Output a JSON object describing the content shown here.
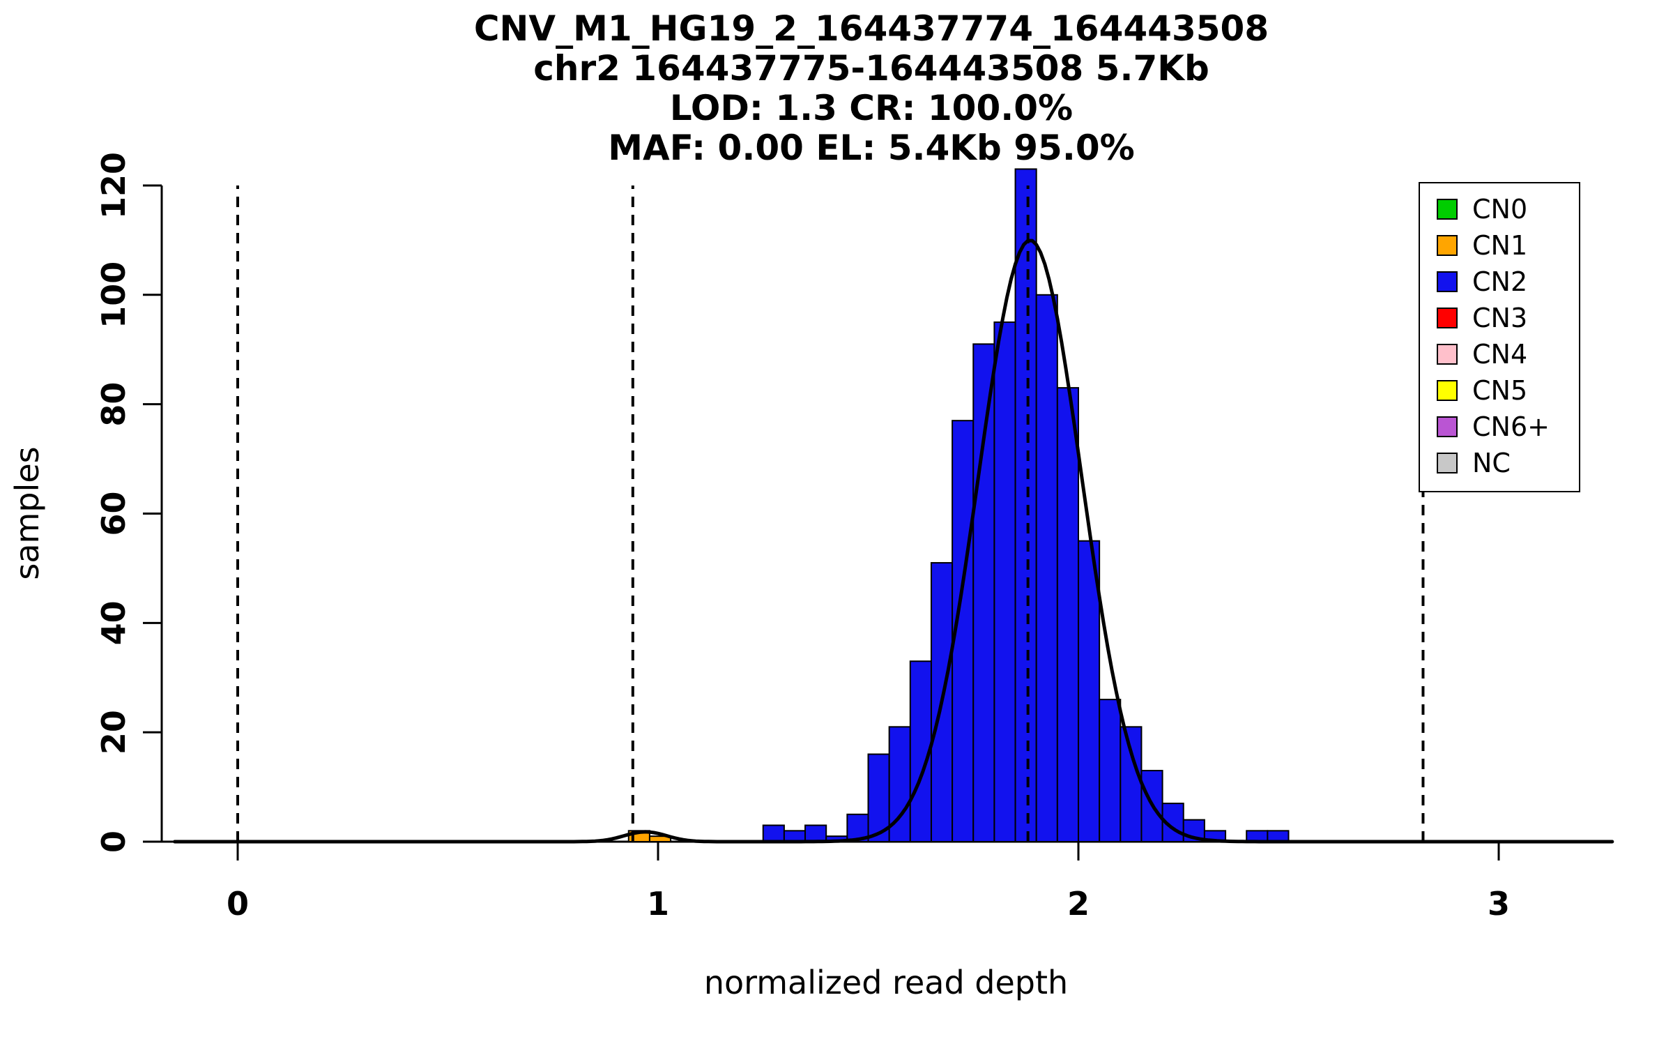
{
  "chart_data": {
    "type": "bar",
    "subtype": "histogram_with_density_curve",
    "title_lines": [
      "CNV_M1_HG19_2_164437774_164443508",
      "chr2 164437775-164443508 5.7Kb",
      "LOD: 1.3 CR: 100.0%",
      "MAF: 0.00 EL: 5.4Kb 95.0%"
    ],
    "xlabel": "normalized read depth",
    "ylabel": "samples",
    "xlim": [
      -0.18,
      3.27
    ],
    "ylim": [
      0,
      120
    ],
    "x_ticks": [
      0,
      1,
      2,
      3
    ],
    "y_ticks": [
      0,
      20,
      40,
      60,
      80,
      100,
      120
    ],
    "grid": "off",
    "legend_position": "top-right",
    "bin_width": 0.05,
    "bars": [
      {
        "x": 0.93,
        "count": 2,
        "cn": "CN1"
      },
      {
        "x": 0.98,
        "count": 1,
        "cn": "CN1"
      },
      {
        "x": 1.25,
        "count": 3,
        "cn": "CN2"
      },
      {
        "x": 1.3,
        "count": 2,
        "cn": "CN2"
      },
      {
        "x": 1.35,
        "count": 3,
        "cn": "CN2"
      },
      {
        "x": 1.4,
        "count": 1,
        "cn": "CN2"
      },
      {
        "x": 1.45,
        "count": 5,
        "cn": "CN2"
      },
      {
        "x": 1.5,
        "count": 16,
        "cn": "CN2"
      },
      {
        "x": 1.55,
        "count": 21,
        "cn": "CN2"
      },
      {
        "x": 1.6,
        "count": 33,
        "cn": "CN2"
      },
      {
        "x": 1.65,
        "count": 51,
        "cn": "CN2"
      },
      {
        "x": 1.7,
        "count": 77,
        "cn": "CN2"
      },
      {
        "x": 1.75,
        "count": 91,
        "cn": "CN2"
      },
      {
        "x": 1.8,
        "count": 95,
        "cn": "CN2"
      },
      {
        "x": 1.85,
        "count": 123,
        "cn": "CN2"
      },
      {
        "x": 1.9,
        "count": 100,
        "cn": "CN2"
      },
      {
        "x": 1.95,
        "count": 83,
        "cn": "CN2"
      },
      {
        "x": 2.0,
        "count": 55,
        "cn": "CN2"
      },
      {
        "x": 2.05,
        "count": 26,
        "cn": "CN2"
      },
      {
        "x": 2.1,
        "count": 21,
        "cn": "CN2"
      },
      {
        "x": 2.15,
        "count": 13,
        "cn": "CN2"
      },
      {
        "x": 2.2,
        "count": 7,
        "cn": "CN2"
      },
      {
        "x": 2.25,
        "count": 4,
        "cn": "CN2"
      },
      {
        "x": 2.3,
        "count": 2,
        "cn": "CN2"
      },
      {
        "x": 2.4,
        "count": 2,
        "cn": "CN2"
      },
      {
        "x": 2.45,
        "count": 2,
        "cn": "CN2"
      }
    ],
    "dashed_guides_x": [
      0,
      0.94,
      1.88,
      2.82
    ],
    "density_curve": {
      "color": "#000000",
      "components": [
        {
          "mean": 0.97,
          "sd": 0.05,
          "height": 1.8
        },
        {
          "mean": 1.885,
          "sd": 0.123,
          "height": 110
        }
      ]
    },
    "legend": [
      {
        "label": "CN0",
        "color": "#00CD00"
      },
      {
        "label": "CN1",
        "color": "#FFA500"
      },
      {
        "label": "CN2",
        "color": "#1212EE"
      },
      {
        "label": "CN3",
        "color": "#FF0000"
      },
      {
        "label": "CN4",
        "color": "#FFC0CB"
      },
      {
        "label": "CN5",
        "color": "#FFFF00"
      },
      {
        "label": "CN6+",
        "color": "#BA55D3"
      },
      {
        "label": "NC",
        "color": "#C8C8C8"
      }
    ],
    "axis_color": "#000000"
  }
}
